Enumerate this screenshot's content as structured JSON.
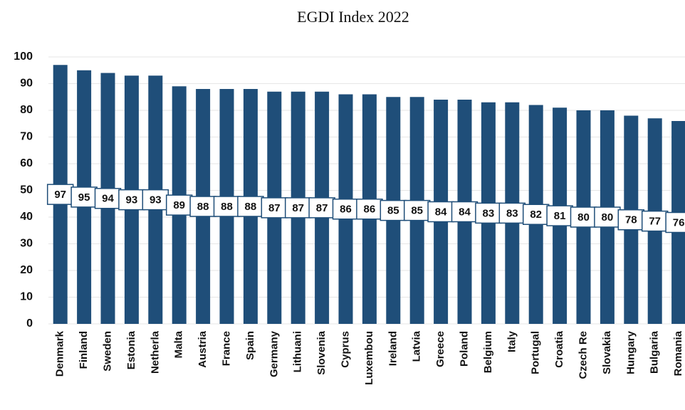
{
  "chart_data": {
    "type": "bar",
    "title": "EGDI Index 2022",
    "categories": [
      "Denmark",
      "Finland",
      "Sweden",
      "Estonia",
      "Netherla",
      "Malta",
      "Austria",
      "France",
      "Spain",
      "Germany",
      "Lithuani",
      "Slovenia",
      "Cyprus",
      "Luxembou",
      "Ireland",
      "Latvia",
      "Greece",
      "Poland",
      "Belgium",
      "Italy",
      "Portugal",
      "Croatia",
      "Czech Re",
      "Slovakia",
      "Hungary",
      "Bulgaria",
      "Romania"
    ],
    "values": [
      97,
      95,
      94,
      93,
      93,
      89,
      88,
      88,
      88,
      87,
      87,
      87,
      86,
      86,
      85,
      85,
      84,
      84,
      83,
      83,
      82,
      81,
      80,
      80,
      78,
      77,
      76
    ],
    "color": "#1f4e79",
    "ylim": [
      0,
      100
    ],
    "yticks": [
      0,
      10,
      20,
      30,
      40,
      50,
      60,
      70,
      80,
      90,
      100
    ],
    "grid": true
  }
}
